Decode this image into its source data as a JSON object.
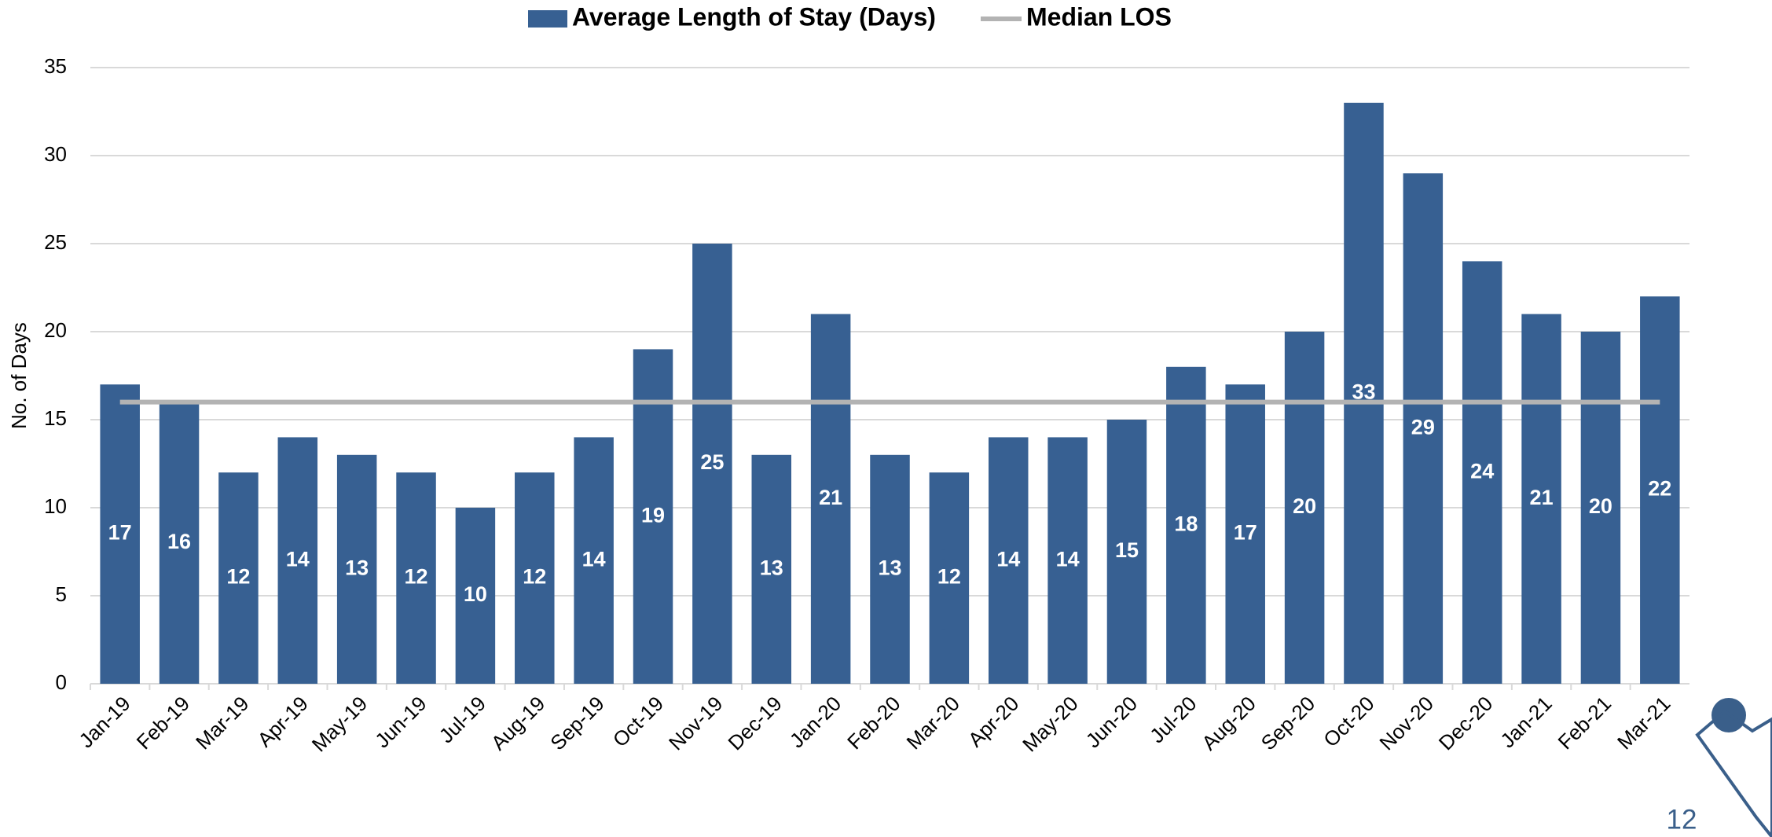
{
  "chart_data": {
    "type": "bar",
    "categories": [
      "Jan-19",
      "Feb-19",
      "Mar-19",
      "Apr-19",
      "May-19",
      "Jun-19",
      "Jul-19",
      "Aug-19",
      "Sep-19",
      "Oct-19",
      "Nov-19",
      "Dec-19",
      "Jan-20",
      "Feb-20",
      "Mar-20",
      "Apr-20",
      "May-20",
      "Jun-20",
      "Jul-20",
      "Aug-20",
      "Sep-20",
      "Oct-20",
      "Nov-20",
      "Dec-20",
      "Jan-21",
      "Feb-21",
      "Mar-21"
    ],
    "series": [
      {
        "name": "Average Length of Stay (Days)",
        "type": "bar",
        "color": "#376092",
        "values": [
          17,
          16,
          12,
          14,
          13,
          12,
          10,
          12,
          14,
          19,
          25,
          13,
          21,
          13,
          12,
          14,
          14,
          15,
          18,
          17,
          20,
          33,
          29,
          24,
          21,
          20,
          22
        ]
      },
      {
        "name": "Median LOS",
        "type": "line",
        "color": "#b3b3b3",
        "values": [
          16,
          16,
          16,
          16,
          16,
          16,
          16,
          16,
          16,
          16,
          16,
          16,
          16,
          16,
          16,
          16,
          16,
          16,
          16,
          16,
          16,
          16,
          16,
          16,
          16,
          16,
          16
        ]
      }
    ],
    "y_label": "No. of Days",
    "ylim": [
      0,
      35
    ],
    "yticks": [
      0,
      5,
      10,
      15,
      20,
      25,
      30,
      35
    ],
    "grid": true
  },
  "page_number": "12"
}
